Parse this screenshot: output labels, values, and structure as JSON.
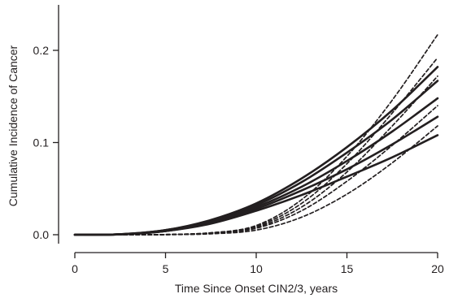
{
  "chart_data": {
    "type": "line",
    "title": "",
    "xlabel": "Time Since Onset CIN2/3, years",
    "ylabel": "Cumulative Incidence of Cancer",
    "xlim": [
      0,
      20
    ],
    "ylim": [
      0,
      0.22
    ],
    "x_ticks": [
      0,
      5,
      10,
      15,
      20
    ],
    "x_tick_labels": [
      "0",
      "5",
      "10",
      "15",
      "20"
    ],
    "y_ticks": [
      0.0,
      0.1,
      0.2
    ],
    "y_tick_labels": [
      "0.0",
      "0.1",
      "0.2"
    ],
    "grid": false,
    "legend": "none",
    "x": [
      0,
      2.5,
      5,
      7.5,
      10,
      12.5,
      15,
      17.5,
      20
    ],
    "series": [
      {
        "style": "solid",
        "values": [
          0,
          0.0005,
          0.005,
          0.016,
          0.034,
          0.061,
          0.095,
          0.135,
          0.182
        ]
      },
      {
        "style": "solid",
        "values": [
          0,
          0.0005,
          0.005,
          0.015,
          0.032,
          0.057,
          0.089,
          0.125,
          0.167
        ]
      },
      {
        "style": "solid",
        "values": [
          0,
          0.0004,
          0.004,
          0.014,
          0.03,
          0.052,
          0.08,
          0.112,
          0.148
        ]
      },
      {
        "style": "solid",
        "values": [
          0,
          0.0004,
          0.004,
          0.013,
          0.028,
          0.048,
          0.071,
          0.098,
          0.128
        ]
      },
      {
        "style": "solid",
        "values": [
          0,
          0.0004,
          0.004,
          0.012,
          0.026,
          0.043,
          0.063,
          0.084,
          0.108
        ]
      },
      {
        "style": "dashed",
        "values": [
          0,
          0,
          0.0002,
          0.002,
          0.01,
          0.038,
          0.085,
          0.146,
          0.217
        ]
      },
      {
        "style": "dashed",
        "values": [
          0,
          0,
          0.0002,
          0.002,
          0.009,
          0.034,
          0.077,
          0.132,
          0.192
        ]
      },
      {
        "style": "dashed",
        "values": [
          0,
          0,
          0.0002,
          0.002,
          0.008,
          0.03,
          0.068,
          0.118,
          0.172
        ]
      },
      {
        "style": "dashed",
        "values": [
          0,
          0,
          0.0001,
          0.0015,
          0.007,
          0.026,
          0.058,
          0.097,
          0.14
        ]
      },
      {
        "style": "dashed",
        "values": [
          0,
          0,
          0.0001,
          0.001,
          0.005,
          0.019,
          0.044,
          0.078,
          0.118
        ]
      }
    ],
    "colors": {
      "line": "#231f20",
      "axis": "#231f20",
      "background": "#ffffff"
    }
  }
}
